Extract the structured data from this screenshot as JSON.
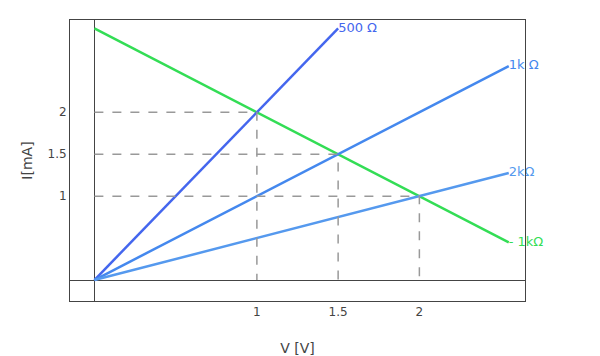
{
  "chart_data": {
    "type": "line",
    "xlabel": "V [V]",
    "ylabel": "I[mA]",
    "xlim": [
      -0.15,
      2.65
    ],
    "ylim": [
      -0.25,
      3.1
    ],
    "xticks": [
      1.0,
      1.5,
      2.0
    ],
    "yticks": [
      1.0,
      1.5,
      2.0
    ],
    "grid": false,
    "series": [
      {
        "name": "- 1kΩ",
        "type": "line",
        "color": "#33dd55",
        "x": [
          0,
          2.55
        ],
        "values": [
          3.0,
          0.45
        ]
      },
      {
        "name": "500 Ω",
        "type": "line",
        "color": "#4466ee",
        "x": [
          0,
          1.5
        ],
        "values": [
          0,
          3.0
        ]
      },
      {
        "name": "1k Ω",
        "type": "line",
        "color": "#4488ee",
        "x": [
          0,
          2.55
        ],
        "values": [
          0,
          2.55
        ]
      },
      {
        "name": "2kΩ",
        "type": "line",
        "color": "#5599ee",
        "x": [
          0,
          2.55
        ],
        "values": [
          0,
          1.275
        ]
      },
      {
        "type": "droplines",
        "color": "#999999",
        "line_style": "dashed",
        "x": [
          1.0,
          1.5,
          2.0
        ],
        "values": [
          2.0,
          1.5,
          1.0
        ]
      }
    ]
  }
}
